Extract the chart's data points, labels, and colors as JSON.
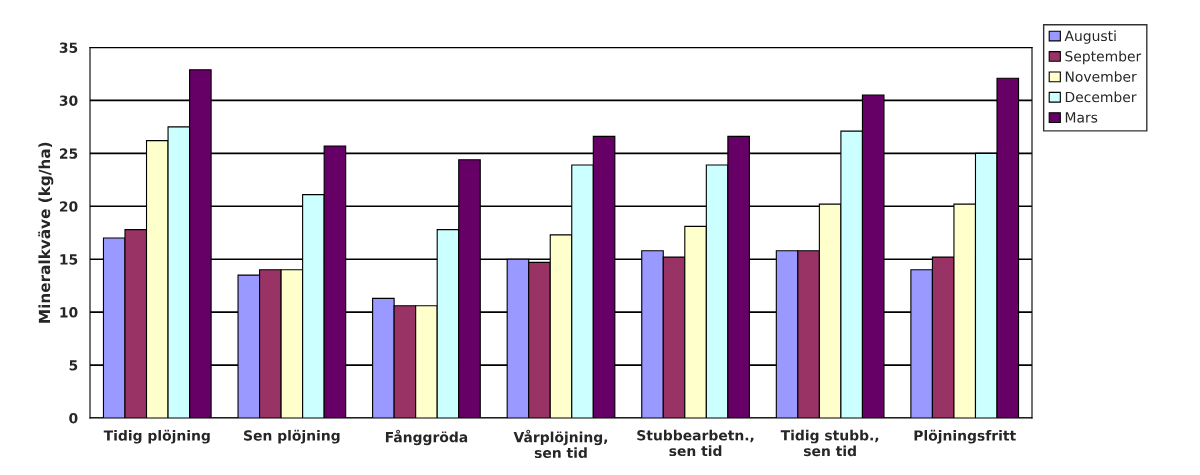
{
  "chart_data": {
    "type": "bar",
    "ylabel": "Mineralkväve (kg/ha)",
    "categories": [
      "Tidig plöjning",
      "Sen plöjning",
      "Fånggröda",
      "Vårplöjning,\nsen tid",
      "Stubbearbetn.,\nsen tid",
      "Tidig stubb.,\nsen tid",
      "Plöjningsfritt"
    ],
    "series": [
      {
        "name": "Augusti",
        "color": "#9999ff",
        "values": [
          17.0,
          13.5,
          11.3,
          15.0,
          15.8,
          15.8,
          14.0
        ]
      },
      {
        "name": "September",
        "color": "#993366",
        "values": [
          17.8,
          14.0,
          10.6,
          14.7,
          15.2,
          15.8,
          15.2
        ]
      },
      {
        "name": "November",
        "color": "#ffffcc",
        "values": [
          26.2,
          14.0,
          10.6,
          17.3,
          18.1,
          20.2,
          20.2
        ]
      },
      {
        "name": "December",
        "color": "#ccffff",
        "values": [
          27.5,
          21.1,
          17.8,
          23.9,
          23.9,
          27.1,
          25.0
        ]
      },
      {
        "name": "Mars",
        "color": "#660066",
        "values": [
          32.9,
          25.7,
          24.4,
          26.6,
          26.6,
          30.5,
          32.1
        ]
      }
    ],
    "ylim": [
      0,
      35
    ],
    "yticks": [
      0,
      5,
      10,
      15,
      20,
      25,
      30,
      35
    ],
    "grid": "y",
    "legend": "top right"
  }
}
